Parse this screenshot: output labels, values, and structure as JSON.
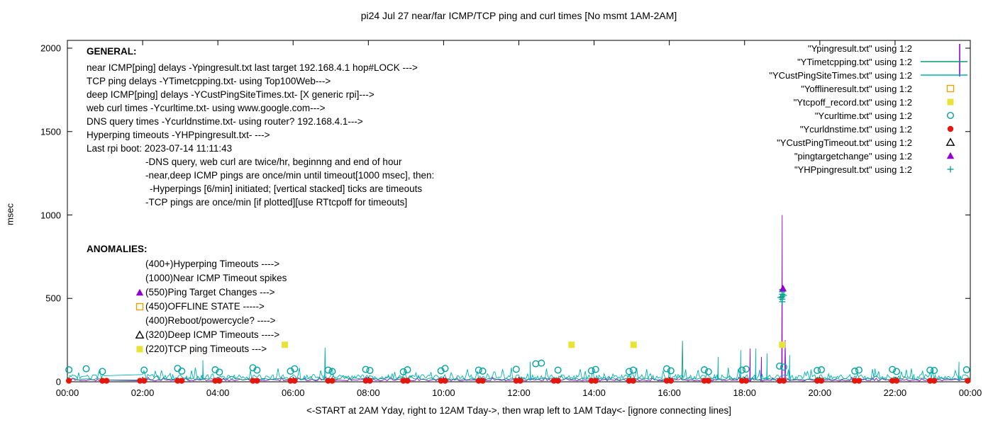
{
  "title": "pi24 Jul 27  near/far ICMP/TCP ping and curl times [No msmt 1AM-2AM]",
  "axes": {
    "ylabel": "msec",
    "xlabel": "<-START at 2AM Yday, right to 12AM Tday->, then wrap left to 1AM Tday<- [ignore connecting lines]",
    "yticks": [
      0,
      500,
      1000,
      1500,
      2000
    ],
    "xtick_hours": [
      0,
      2,
      4,
      6,
      8,
      10,
      12,
      14,
      16,
      18,
      20,
      22,
      24
    ],
    "xtick_labels": [
      "00:00",
      "02:00",
      "04:00",
      "06:00",
      "08:00",
      "10:00",
      "12:00",
      "14:00",
      "16:00",
      "18:00",
      "20:00",
      "22:00",
      "00:00"
    ]
  },
  "legend": [
    {
      "label": "\"Ypingresult.txt\" using 1:2",
      "marker": "impulse",
      "color": "#9400d3"
    },
    {
      "label": "\"YTimetcpping.txt\" using 1:2",
      "marker": "line",
      "color": "#009e73"
    },
    {
      "label": "\"YCustPingSiteTimes.txt\" using 1:2",
      "marker": "line",
      "color": "#00b2b2"
    },
    {
      "label": "\"Yofflineresult.txt\" using 1:2",
      "marker": "square-open",
      "color": "#e6a400"
    },
    {
      "label": "\"Ytcpoff_record.txt\" using 1:2",
      "marker": "square-filled",
      "color": "#e8e337"
    },
    {
      "label": "\"Ycurltime.txt\" using 1:2",
      "marker": "circle-open",
      "color": "#00a2a2"
    },
    {
      "label": "\"Ycurldnstime.txt\" using 1:2",
      "marker": "circle-filled",
      "color": "#e3170d"
    },
    {
      "label": "\"YCustPingTimeout.txt\" using 1:2",
      "marker": "triangle-open",
      "color": "#000000"
    },
    {
      "label": "\"pingtargetchange\" using 1:2",
      "marker": "triangle-filled",
      "color": "#9400d3"
    },
    {
      "label": "\"YHPpingresult.txt\" using 1:2",
      "marker": "plus",
      "color": "#009e8c"
    }
  ],
  "general": {
    "heading": "GENERAL:",
    "lines": [
      {
        "text": "near ICMP[ping] delays -Ypingresult.txt last target 192.168.4.1 hop#LOCK --->",
        "indent": 0
      },
      {
        "text": "TCP ping delays -YTimetcpping.txt- using Top100Web--->",
        "indent": 0
      },
      {
        "text": "deep ICMP[ping] delays -YCustPingSiteTimes.txt- [X generic rpi]--->",
        "indent": 0
      },
      {
        "text": "web curl times -Ycurltime.txt- using www.google.com--->",
        "indent": 0
      },
      {
        "text": "DNS query times -Ycurldnstime.txt- using router? 192.168.4.1--->",
        "indent": 0
      },
      {
        "text": "Hyperping timeouts -YHPpingresult.txt- --->",
        "indent": 0
      },
      {
        "text": "Last rpi boot: 2023-07-14 11:11:43",
        "indent": 0
      },
      {
        "text": "-DNS query, web curl are twice/hr, beginnng and end of hour",
        "indent": 1
      },
      {
        "text": "-near,deep ICMP pings are once/min until timeout[1000 msec], then:",
        "indent": 1
      },
      {
        "text": "-Hyperpings [6/min] initiated; [vertical stacked] ticks are timeouts",
        "indent": 2
      },
      {
        "text": "-TCP pings are once/min [if plotted][use RTtcpoff for timeouts]",
        "indent": 1
      }
    ]
  },
  "anomalies": {
    "heading": "ANOMALIES:",
    "items": [
      {
        "text": "(400+)Hyperping Timeouts ---->",
        "marker": "none",
        "color": ""
      },
      {
        "text": "(1000)Near ICMP Timeout spikes",
        "marker": "none",
        "color": ""
      },
      {
        "text": "(550)Ping Target Changes --->",
        "marker": "triangle-filled",
        "color": "#9400d3"
      },
      {
        "text": "(450)OFFLINE STATE ----->",
        "marker": "square-open",
        "color": "#e6a400"
      },
      {
        "text": "(400)Reboot/powercycle? ---->",
        "marker": "none",
        "color": ""
      },
      {
        "text": "(320)Deep ICMP Timeouts ---->",
        "marker": "triangle-open",
        "color": "#000000"
      },
      {
        "text": "(220)TCP ping Timeouts --->",
        "marker": "square-filled",
        "color": "#e8e337"
      }
    ]
  },
  "chart_data": {
    "type": "line",
    "title": "pi24 Jul 27  near/far ICMP/TCP ping and curl times [No msmt 1AM-2AM]",
    "xlabel": "<-START at 2AM Yday, right to 12AM Tday->, then wrap left to 1AM Tday<- [ignore connecting lines]",
    "ylabel": "msec",
    "xlim_hours": [
      0,
      24
    ],
    "ylim": [
      0,
      2000
    ],
    "grid": false,
    "legend_position": "top-right-inside",
    "gap_hours": [
      1,
      2
    ],
    "noise_series": [
      {
        "name": "Ypingresult.txt",
        "color": "#9400d3",
        "base": 5,
        "amp": 22,
        "pph": 20,
        "seed": 11,
        "spikes": [
          [
            18.15,
            200
          ],
          [
            18.45,
            150
          ],
          [
            19.0,
            1000
          ],
          [
            19.08,
            250
          ]
        ]
      },
      {
        "name": "YTimetcpping.txt",
        "color": "#009e73",
        "base": 10,
        "amp": 28,
        "pph": 15,
        "seed": 22,
        "spikes": [
          [
            16.35,
            245
          ]
        ]
      },
      {
        "name": "YCustPingSiteTimes.txt",
        "color": "#00b2b2",
        "base": 12,
        "amp": 70,
        "pph": 30,
        "seed": 33,
        "spikes": [
          [
            3.6,
            130
          ],
          [
            6.85,
            205
          ],
          [
            12.3,
            120
          ],
          [
            17.3,
            150
          ],
          [
            17.9,
            190
          ],
          [
            18.3,
            200
          ],
          [
            18.6,
            170
          ],
          [
            19.2,
            160
          ],
          [
            23.7,
            120
          ]
        ]
      }
    ],
    "curl_times": {
      "name": "Ycurltime.txt",
      "marker": "circle-open",
      "color": "#00a2a2",
      "points": [
        [
          0.04,
          72
        ],
        [
          0.5,
          78
        ],
        [
          0.93,
          62
        ],
        [
          2.04,
          70
        ],
        [
          2.93,
          80
        ],
        [
          3.04,
          64
        ],
        [
          3.93,
          72
        ],
        [
          4.04,
          58
        ],
        [
          4.93,
          84
        ],
        [
          5.04,
          70
        ],
        [
          5.93,
          64
        ],
        [
          6.04,
          78
        ],
        [
          6.93,
          70
        ],
        [
          7.04,
          62
        ],
        [
          7.93,
          74
        ],
        [
          8.04,
          68
        ],
        [
          8.93,
          60
        ],
        [
          9.04,
          72
        ],
        [
          9.93,
          66
        ],
        [
          10.04,
          80
        ],
        [
          10.93,
          70
        ],
        [
          11.04,
          64
        ],
        [
          11.93,
          75
        ],
        [
          12.45,
          108
        ],
        [
          12.6,
          112
        ],
        [
          13.04,
          70
        ],
        [
          13.93,
          66
        ],
        [
          14.04,
          74
        ],
        [
          14.93,
          62
        ],
        [
          15.04,
          70
        ],
        [
          15.93,
          78
        ],
        [
          16.04,
          66
        ],
        [
          16.93,
          72
        ],
        [
          17.04,
          60
        ],
        [
          17.93,
          70
        ],
        [
          18.04,
          76
        ],
        [
          18.93,
          94
        ],
        [
          19.04,
          88
        ],
        [
          19.93,
          68
        ],
        [
          20.04,
          72
        ],
        [
          20.93,
          64
        ],
        [
          21.04,
          70
        ],
        [
          21.93,
          74
        ],
        [
          22.04,
          62
        ],
        [
          22.93,
          70
        ],
        [
          23.04,
          68
        ],
        [
          23.9,
          72
        ]
      ]
    },
    "dns_times": {
      "name": "Ycurldnstime.txt",
      "marker": "circle-filled",
      "color": "#e3170d",
      "y": 6,
      "hours": [
        0,
        1,
        2,
        3,
        4,
        5,
        6,
        7,
        8,
        9,
        10,
        11,
        12,
        13,
        14,
        15,
        16,
        17,
        18,
        19,
        20,
        21,
        22,
        23
      ],
      "offsets": [
        0.04,
        0.93
      ]
    },
    "tcp_timeouts": {
      "name": "Ytcpoff_record.txt",
      "marker": "square-filled",
      "color": "#e8e337",
      "points": [
        [
          5.78,
          222
        ],
        [
          13.4,
          222
        ],
        [
          15.05,
          222
        ],
        [
          19.0,
          222
        ]
      ]
    },
    "hyperping_timeouts": {
      "name": "YHPpingresult.txt",
      "marker": "plus",
      "color": "#009e8c",
      "points": [
        [
          19.0,
          480
        ],
        [
          19.0,
          495
        ],
        [
          19.0,
          510
        ],
        [
          19.0,
          525
        ],
        [
          19.0,
          540
        ],
        [
          18.96,
          505
        ],
        [
          19.04,
          518
        ],
        [
          19.0,
          553
        ]
      ]
    },
    "ping_target_changes": {
      "name": "pingtargetchange",
      "marker": "triangle-filled",
      "color": "#9400d3",
      "points": [
        [
          19.02,
          560
        ]
      ]
    }
  }
}
